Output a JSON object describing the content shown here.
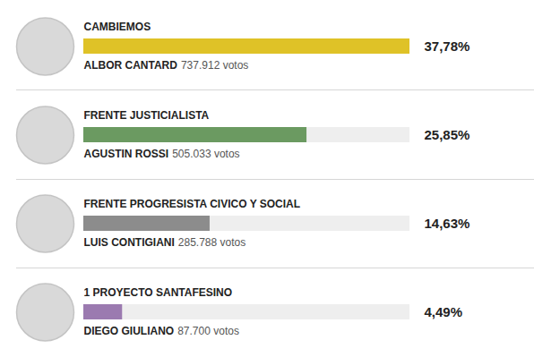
{
  "chart_data": {
    "type": "bar",
    "orientation": "horizontal",
    "categories": [
      "CAMBIEMOS",
      "FRENTE JUSTICIALISTA",
      "FRENTE PROGRESISTA CIVICO Y SOCIAL",
      "1 PROYECTO SANTAFESINO"
    ],
    "values": [
      37.78,
      25.85,
      14.63,
      4.49
    ],
    "value_labels": [
      "37,78%",
      "25,85%",
      "14,63%",
      "4,49%"
    ],
    "colors": [
      "#dfc227",
      "#6b9a61",
      "#8c8c8c",
      "#9b7ab0"
    ],
    "candidates": [
      "ALBOR CANTARD",
      "AGUSTIN ROSSI",
      "LUIS CONTIGIANI",
      "DIEGO GIULIANO"
    ],
    "vote_labels": [
      "737.912 votos",
      "505.033 votos",
      "285.788 votos",
      "87.700 votos"
    ],
    "xlim": [
      0,
      37.78
    ],
    "data_labels": true,
    "tick_labels": false
  }
}
